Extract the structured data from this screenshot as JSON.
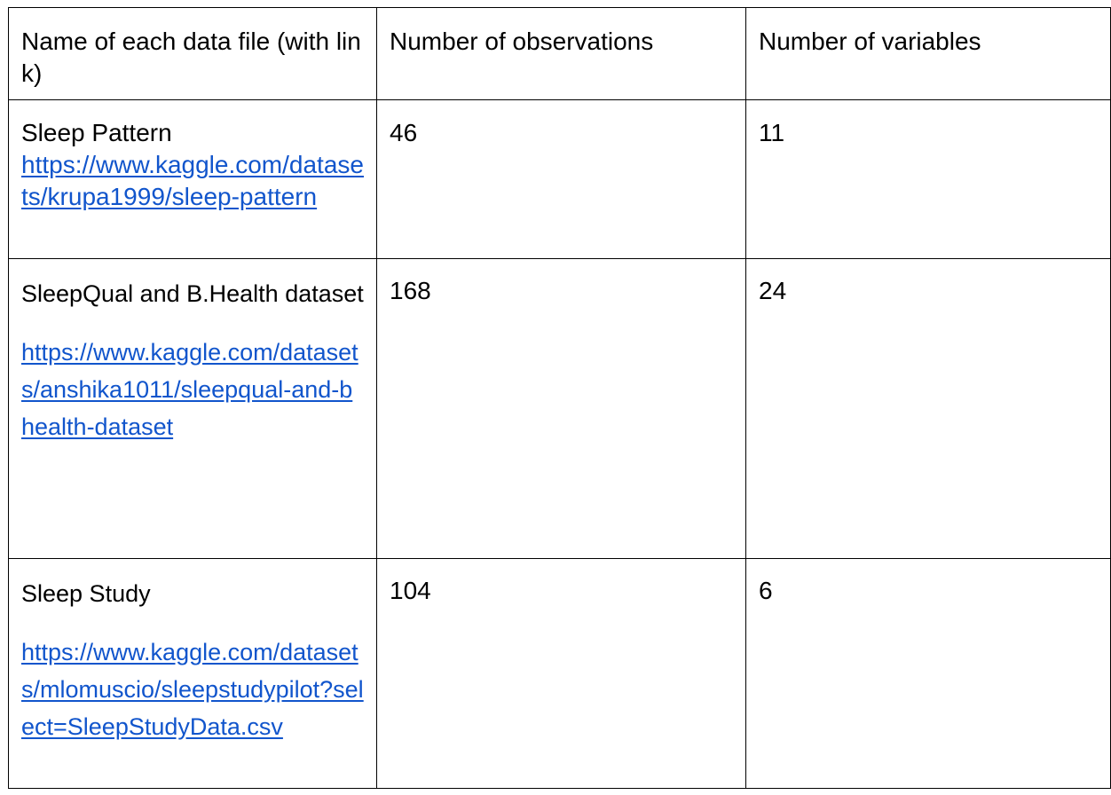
{
  "table": {
    "headers": [
      "Name of each data file (with link)",
      "Number of observations",
      "Number of variables"
    ],
    "rows": [
      {
        "name": "Sleep Pattern",
        "link": "https://www.kaggle.com/datasets/krupa1999/sleep-pattern",
        "observations": "46",
        "variables": "11"
      },
      {
        "name": "SleepQual and B.Health dataset",
        "link": "https://www.kaggle.com/datasets/anshika1011/sleepqual-and-bhealth-dataset",
        "observations": "168",
        "variables": "24"
      },
      {
        "name": "Sleep Study",
        "link": "https://www.kaggle.com/datasets/mlomuscio/sleepstudypilot?select=SleepStudyData.csv",
        "observations": "104",
        "variables": "6"
      }
    ]
  },
  "colors": {
    "link": "#1155cc",
    "border": "#000000",
    "text": "#000000"
  }
}
